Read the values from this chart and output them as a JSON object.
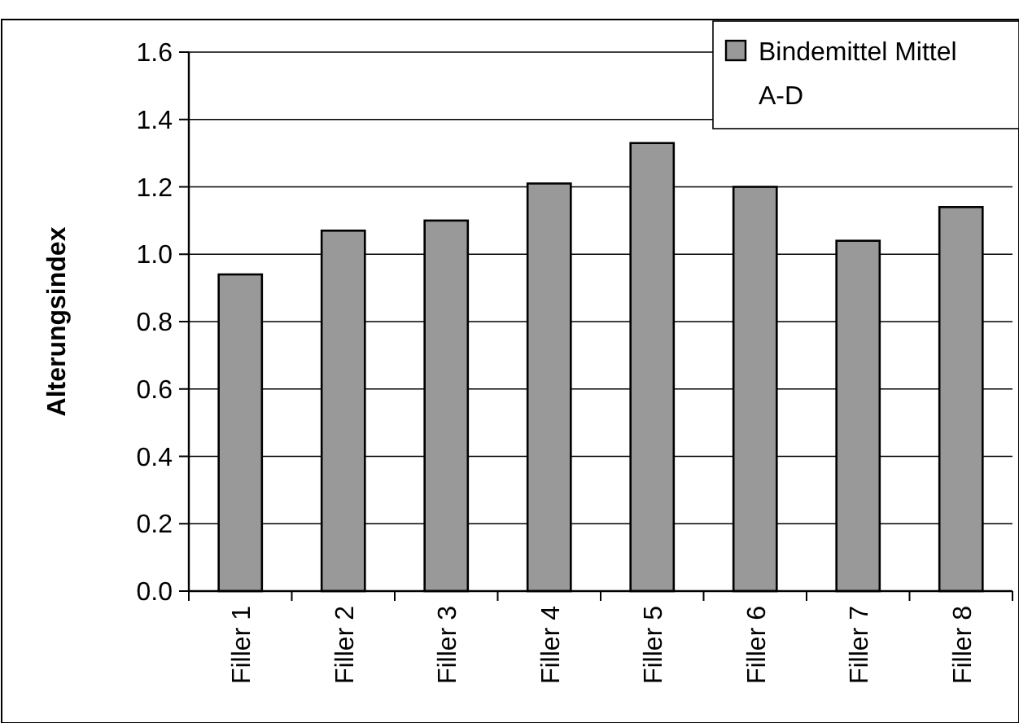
{
  "chart_data": {
    "type": "bar",
    "ylabel": "Alterungsindex",
    "categories": [
      "Filler 1",
      "Filler 2",
      "Filler 3",
      "Filler 4",
      "Filler 5",
      "Filler 6",
      "Filler 7",
      "Filler 8"
    ],
    "series": [
      {
        "name": "Bindemittel Mittel A-D",
        "color": "#999999",
        "values": [
          0.94,
          1.07,
          1.1,
          1.21,
          1.33,
          1.2,
          1.04,
          1.14
        ]
      }
    ],
    "ylim": [
      0,
      1.6
    ],
    "yticks": [
      {
        "value": 0,
        "label": "0.0"
      },
      {
        "value": 0.2,
        "label": "0.2"
      },
      {
        "value": 0.4,
        "label": "0.4"
      },
      {
        "value": 0.6,
        "label": "0.6"
      },
      {
        "value": 0.8,
        "label": "0.8"
      },
      {
        "value": 1,
        "label": "1.0"
      },
      {
        "value": 1.2,
        "label": "1.2"
      },
      {
        "value": 1.4,
        "label": "1.4"
      },
      {
        "value": 1.6,
        "label": "1.6"
      }
    ],
    "grid": "y",
    "legend": "top right"
  }
}
